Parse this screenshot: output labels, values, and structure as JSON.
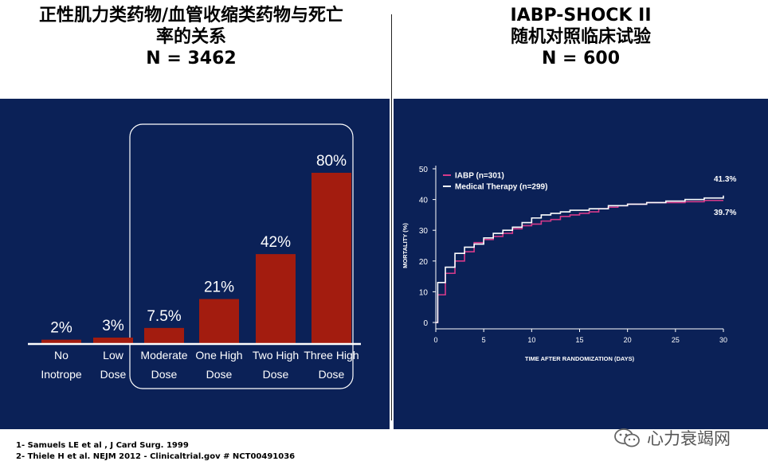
{
  "left_title": {
    "line1": "正性肌力类药物/血管收缩类药物与死亡",
    "line2": "率的关系",
    "line3": "N = 3462"
  },
  "right_title": {
    "line1": "IABP-SHOCK II",
    "line2": "随机对照临床试验",
    "line3": "N = 600"
  },
  "colors": {
    "panel": "#0b2157",
    "bar": "#a31c0f",
    "axis": "#ffffff",
    "iabp": "#d63a8a",
    "medical": "#ffffff",
    "text": "#ffffff"
  },
  "chart_data": [
    {
      "type": "bar",
      "title": "",
      "categories": [
        {
          "line1": "No",
          "line2": "Inotrope"
        },
        {
          "line1": "Low",
          "line2": "Dose"
        },
        {
          "line1": "Moderate",
          "line2": "Dose"
        },
        {
          "line1": "One High",
          "line2": "Dose"
        },
        {
          "line1": "Two High",
          "line2": "Dose"
        },
        {
          "line1": "Three High",
          "line2": "Dose"
        }
      ],
      "values": [
        2,
        3,
        7.5,
        21,
        42,
        80
      ],
      "value_labels": [
        "2%",
        "3%",
        "7.5%",
        "21%",
        "42%",
        "80%"
      ],
      "ylim": [
        0,
        80
      ],
      "highlight_group": "Moderate to Three High Dose"
    },
    {
      "type": "line",
      "step": true,
      "xlabel": "TIME AFTER RANDOMIZATION (DAYS)",
      "ylabel": "MORTALITY (%)",
      "xlim": [
        0,
        30
      ],
      "ylim": [
        0,
        50
      ],
      "xticks": [
        0,
        5,
        10,
        15,
        20,
        25,
        30
      ],
      "yticks": [
        0,
        10,
        20,
        30,
        40,
        50
      ],
      "legend_position": "top-left",
      "series": [
        {
          "name": "IABP (n=301)",
          "color_key": "iabp",
          "end_label": "39.7%",
          "x": [
            0,
            0.2,
            1,
            2,
            3,
            4,
            5,
            6,
            7,
            8,
            9,
            10,
            11,
            12,
            13,
            14,
            15,
            16,
            17,
            18,
            19,
            20,
            22,
            24,
            26,
            28,
            30
          ],
          "y": [
            0,
            9,
            16,
            20,
            23,
            26,
            27,
            28,
            29,
            30.5,
            31.5,
            32,
            33,
            33.5,
            34.5,
            35,
            35.5,
            36,
            37,
            37.5,
            38,
            38.5,
            39,
            39,
            39.3,
            39.7,
            39.7
          ]
        },
        {
          "name": "Medical Therapy  (n=299)",
          "color_key": "medical",
          "end_label": "41.3%",
          "x": [
            0,
            0.2,
            1,
            2,
            3,
            4,
            5,
            6,
            7,
            8,
            9,
            10,
            11,
            12,
            13,
            14,
            15,
            16,
            17,
            18,
            19,
            20,
            22,
            24,
            26,
            28,
            30
          ],
          "y": [
            0,
            13,
            18,
            22.5,
            24.5,
            25.5,
            27.5,
            29,
            30,
            31,
            32.5,
            34,
            35,
            35.5,
            36,
            36.5,
            36.5,
            37,
            37,
            38,
            38,
            38.5,
            39,
            39.5,
            40,
            40.5,
            41.3
          ]
        }
      ]
    }
  ],
  "references": [
    "1- Samuels LE et al , J Card Surg. 1999",
    "2- Thiele H et al. NEJM 2012 - Clinicaltrial.gov # NCT00491036"
  ],
  "watermark": {
    "text": "心力衰竭网",
    "icon": "wechat-icon"
  }
}
